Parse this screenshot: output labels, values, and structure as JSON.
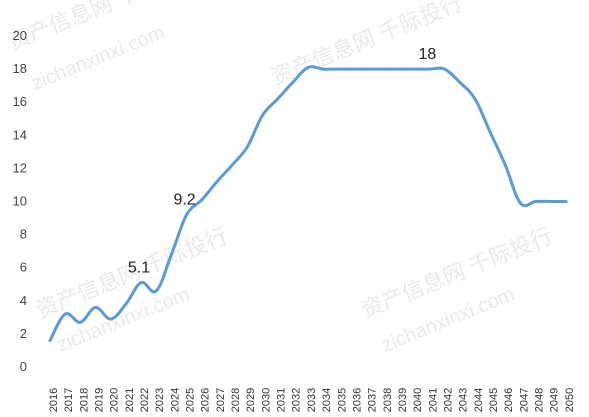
{
  "chart_data": {
    "type": "line",
    "title": "",
    "xlabel": "",
    "ylabel": "",
    "ylim": [
      0,
      20
    ],
    "yticks": [
      0,
      2,
      4,
      6,
      8,
      10,
      12,
      14,
      16,
      18,
      20
    ],
    "grid": false,
    "legend": "none",
    "series_color": "#5B9BD5",
    "categories": [
      "2016",
      "2017",
      "2018",
      "2019",
      "2020",
      "2021",
      "2022",
      "2023",
      "2024",
      "2025",
      "2026",
      "2027",
      "2028",
      "2029",
      "2030",
      "2031",
      "2032",
      "2033",
      "2034",
      "2035",
      "2036",
      "2037",
      "2038",
      "2039",
      "2040",
      "2041",
      "2042",
      "2043",
      "2044",
      "2045",
      "2046",
      "2047",
      "2048",
      "2049",
      "2050"
    ],
    "series": [
      {
        "values": [
          1.6,
          3.2,
          2.7,
          3.6,
          2.9,
          3.8,
          5.1,
          4.6,
          6.8,
          9.2,
          10.1,
          11.2,
          12.2,
          13.3,
          15.2,
          16.2,
          17.2,
          18.1,
          18.0,
          18.0,
          18.0,
          18.0,
          18.0,
          18.0,
          18.0,
          18.0,
          18.0,
          17.2,
          16.2,
          14.2,
          12.2,
          9.9,
          10.0,
          10.0,
          10.0
        ]
      }
    ],
    "data_labels": [
      {
        "category": "2022",
        "text": "5.1"
      },
      {
        "category": "2025",
        "text": "9.2"
      },
      {
        "category": "2041",
        "text": "18"
      }
    ]
  },
  "watermarks": [
    "资产信息网 千际投行",
    "zichanxinxi.com"
  ]
}
